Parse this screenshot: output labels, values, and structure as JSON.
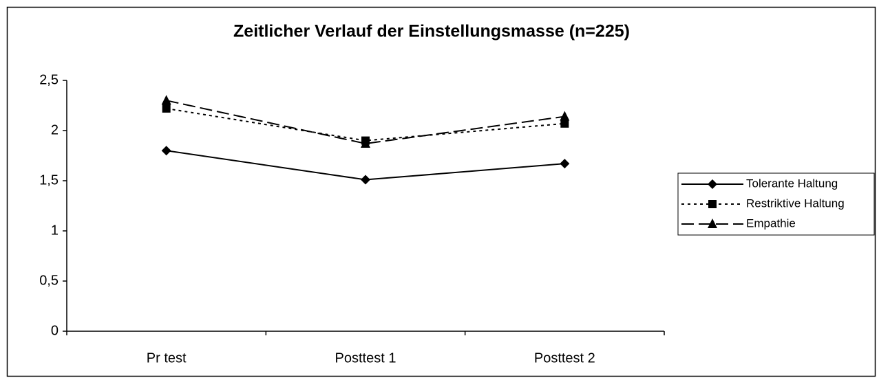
{
  "chart_data": {
    "type": "line",
    "title": "Zeitlicher Verlauf der Einstellungsmasse (n=225)",
    "categories": [
      "Pr   test",
      "Posttest 1",
      "Posttest 2"
    ],
    "series": [
      {
        "name": "Tolerante Haltung",
        "color": "#000000",
        "dash": "solid",
        "marker": "diamond",
        "values": [
          1.8,
          1.51,
          1.67
        ]
      },
      {
        "name": "Restriktive Haltung",
        "color": "#000000",
        "dash": "dotted",
        "marker": "square",
        "values": [
          2.22,
          1.9,
          2.07
        ]
      },
      {
        "name": "Empathie",
        "color": "#000000",
        "dash": "dashed",
        "marker": "triangle",
        "values": [
          2.3,
          1.87,
          2.14
        ]
      }
    ],
    "ylim": [
      0,
      2.5
    ],
    "yticks": [
      0,
      {
        "value": 0.5,
        "label": "0,5"
      },
      1,
      {
        "value": 1.5,
        "label": "1,5"
      },
      2,
      {
        "value": 2.5,
        "label": "2,5"
      }
    ],
    "grid": false,
    "legend": "right"
  }
}
